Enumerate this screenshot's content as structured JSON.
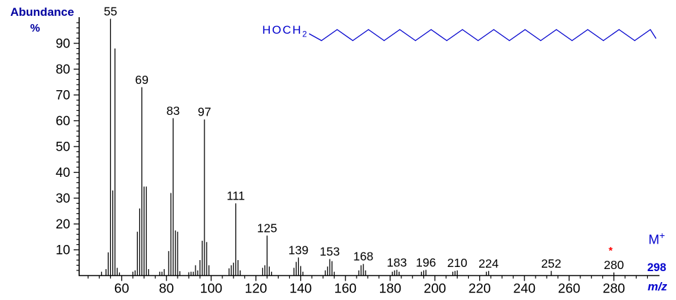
{
  "header": {
    "title": "Abundance",
    "unit_label": "%"
  },
  "structure": {
    "formula_main": "HOCH",
    "formula_sub": "2",
    "description": "long zigzag carbon chain (fatty alcohol)",
    "color": "#0000CD"
  },
  "molecular_ion": {
    "symbol": "M",
    "charge": "+",
    "mass_label": "298",
    "star": "*",
    "star_color": "#FF0000",
    "color": "#0000CD"
  },
  "axis_labels": {
    "x": "m/z"
  },
  "chart_data": {
    "type": "bar",
    "title": "Mass spectrum (electron impact) of a long-chain primary alcohol",
    "xlabel": "m/z",
    "ylabel": "Abundance %",
    "xlim": [
      41,
      301
    ],
    "ylim": [
      0,
      100
    ],
    "grid": false,
    "x_major_ticks": [
      60,
      80,
      100,
      120,
      140,
      160,
      180,
      200,
      220,
      240,
      260,
      280
    ],
    "x_minor_tick_step": 5,
    "y_major_ticks": [
      10,
      20,
      30,
      40,
      50,
      60,
      70,
      80,
      90
    ],
    "y_minor_tick_step": 2,
    "peaks": [
      [
        51,
        1.5
      ],
      [
        53,
        2.5
      ],
      [
        54,
        9
      ],
      [
        55,
        99.5
      ],
      [
        56,
        33
      ],
      [
        57,
        88
      ],
      [
        58,
        3
      ],
      [
        59,
        1.2
      ],
      [
        65,
        1.5
      ],
      [
        66,
        2
      ],
      [
        67,
        17
      ],
      [
        68,
        26
      ],
      [
        69,
        73
      ],
      [
        70,
        34.5
      ],
      [
        71,
        34.5
      ],
      [
        72,
        2.5
      ],
      [
        77,
        1.5
      ],
      [
        78,
        1.5
      ],
      [
        79,
        2.5
      ],
      [
        81,
        9.5
      ],
      [
        82,
        32
      ],
      [
        83,
        61
      ],
      [
        84,
        17.5
      ],
      [
        85,
        17
      ],
      [
        86,
        1.7
      ],
      [
        90,
        1.3
      ],
      [
        91,
        1.5
      ],
      [
        92,
        1.5
      ],
      [
        93,
        4
      ],
      [
        94,
        2
      ],
      [
        95,
        6
      ],
      [
        96,
        13.5
      ],
      [
        97,
        60.5
      ],
      [
        98,
        13
      ],
      [
        99,
        4
      ],
      [
        108,
        2.8
      ],
      [
        109,
        4
      ],
      [
        110,
        5
      ],
      [
        111,
        28
      ],
      [
        112,
        6
      ],
      [
        113,
        2
      ],
      [
        123,
        3
      ],
      [
        124,
        4
      ],
      [
        125,
        15.5
      ],
      [
        126,
        3.5
      ],
      [
        127,
        1.5
      ],
      [
        137,
        3
      ],
      [
        138,
        5.3
      ],
      [
        139,
        7
      ],
      [
        140,
        3.7
      ],
      [
        141,
        1.5
      ],
      [
        151,
        2
      ],
      [
        152,
        3.5
      ],
      [
        153,
        6.4
      ],
      [
        154,
        5.6
      ],
      [
        155,
        1.5
      ],
      [
        166,
        2
      ],
      [
        167,
        4
      ],
      [
        168,
        4.5
      ],
      [
        169,
        2
      ],
      [
        181,
        1.5
      ],
      [
        182,
        2
      ],
      [
        183,
        2.2
      ],
      [
        184,
        1.5
      ],
      [
        194,
        1.5
      ],
      [
        195,
        2
      ],
      [
        196,
        2.2
      ],
      [
        208,
        1.5
      ],
      [
        209,
        1.8
      ],
      [
        210,
        2
      ],
      [
        223,
        1.5
      ],
      [
        224,
        1.8
      ],
      [
        252,
        1.8
      ],
      [
        280,
        1.2
      ]
    ],
    "labeled_peaks": [
      55,
      69,
      83,
      97,
      111,
      125,
      139,
      153,
      168,
      183,
      196,
      210,
      224,
      252,
      280
    ]
  }
}
